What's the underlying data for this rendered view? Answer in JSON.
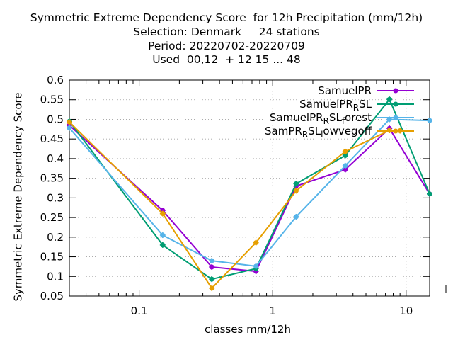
{
  "chart_data": {
    "type": "line",
    "title_lines": [
      "Symmetric Extreme Dependency Score  for 12h Precipitation (mm/12h)",
      "Selection: Denmark     24 stations",
      "Period: 20220702-20220709",
      "Used  00,12  + 12 15 ... 48"
    ],
    "xlabel": "classes mm/12h",
    "ylabel": "Symmetric Extreme Dependency Score",
    "xscale": "log",
    "xlim": [
      0.03,
      15
    ],
    "ylim": [
      0.05,
      0.6
    ],
    "xticks": [
      {
        "value": 0.1,
        "label": "0.1"
      },
      {
        "value": 1,
        "label": "1"
      },
      {
        "value": 10,
        "label": "10"
      }
    ],
    "yticks": [
      {
        "value": 0.05,
        "label": "0.05"
      },
      {
        "value": 0.1,
        "label": "0.1"
      },
      {
        "value": 0.15,
        "label": "0.15"
      },
      {
        "value": 0.2,
        "label": "0.2"
      },
      {
        "value": 0.25,
        "label": "0.25"
      },
      {
        "value": 0.3,
        "label": "0.3"
      },
      {
        "value": 0.35,
        "label": "0.35"
      },
      {
        "value": 0.4,
        "label": "0.4"
      },
      {
        "value": 0.45,
        "label": "0.45"
      },
      {
        "value": 0.5,
        "label": "0.5"
      },
      {
        "value": 0.55,
        "label": "0.55"
      },
      {
        "value": 0.6,
        "label": "0.6"
      }
    ],
    "grid": true,
    "legend_position": "top-right",
    "series": [
      {
        "name": "SamuelPR",
        "legend_main": "SamuelPR",
        "legend_sub": "",
        "legend_rest": "",
        "color": "#9400d3",
        "x": [
          0.03,
          0.15,
          0.35,
          0.75,
          1.5,
          3.5,
          7.5,
          15
        ],
        "y": [
          0.485,
          0.268,
          0.124,
          0.113,
          0.33,
          0.372,
          0.477,
          0.31
        ]
      },
      {
        "name": "SamuelPR_RSL",
        "legend_main": "SamuelPR",
        "legend_sub": "R",
        "legend_rest": "SL",
        "color": "#009e73",
        "x": [
          0.03,
          0.15,
          0.35,
          0.75,
          1.5,
          3.5,
          7.5,
          15
        ],
        "y": [
          0.495,
          0.18,
          0.093,
          0.12,
          0.336,
          0.408,
          0.551,
          0.31
        ]
      },
      {
        "name": "SamuelPR_RSL_forest",
        "legend_main": "SamuelPR",
        "legend_sub": "R",
        "legend_rest": "SL",
        "legend_sub2": "f",
        "legend_tail": "orest",
        "color": "#56b4e9",
        "x": [
          0.03,
          0.15,
          0.35,
          0.75,
          1.5,
          3.5,
          7.5,
          15
        ],
        "y": [
          0.478,
          0.205,
          0.14,
          0.126,
          0.252,
          0.382,
          0.5,
          0.497
        ]
      },
      {
        "name": "SamPR_RSL_lowvegoff",
        "legend_main": "SamPR",
        "legend_sub": "R",
        "legend_rest": "SL",
        "legend_sub2": "l",
        "legend_tail": "owvegoff",
        "color": "#e69f00",
        "x": [
          0.03,
          0.15,
          0.35,
          0.75,
          1.5,
          3.5,
          7.5,
          9.0
        ],
        "y": [
          0.493,
          0.26,
          0.07,
          0.186,
          0.318,
          0.418,
          0.472,
          0.471
        ]
      }
    ]
  }
}
